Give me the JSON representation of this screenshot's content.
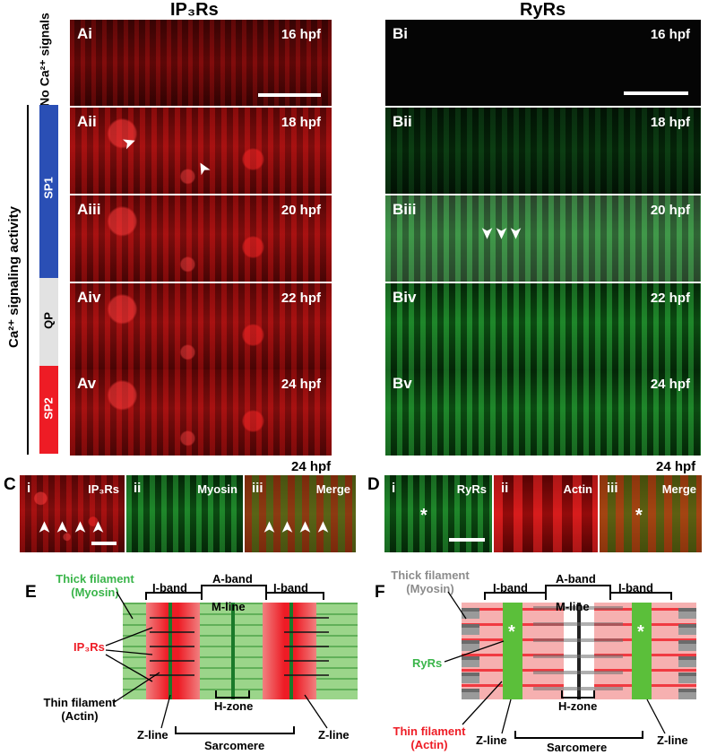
{
  "headers": {
    "ip3rs": "IP₃Rs",
    "ryrs": "RyRs"
  },
  "side": {
    "no_signals": "No Ca²⁺ signals",
    "activity": "Ca²⁺ signaling activity",
    "sp1": "SP1",
    "qp": "QP",
    "sp2": "SP2",
    "colors": {
      "sp1": "#2a4fb5",
      "qp": "#e2e2e2",
      "sp2": "#ee1c25"
    }
  },
  "panels_a": [
    {
      "label": "Ai",
      "time": "16 hpf"
    },
    {
      "label": "Aii",
      "time": "18 hpf"
    },
    {
      "label": "Aiii",
      "time": "20 hpf"
    },
    {
      "label": "Aiv",
      "time": "22 hpf"
    },
    {
      "label": "Av",
      "time": "24 hpf"
    }
  ],
  "panels_b": [
    {
      "label": "Bi",
      "time": "16 hpf"
    },
    {
      "label": "Bii",
      "time": "18 hpf"
    },
    {
      "label": "Biii",
      "time": "20 hpf"
    },
    {
      "label": "Biv",
      "time": "22 hpf"
    },
    {
      "label": "Bv",
      "time": "24 hpf"
    }
  ],
  "panel_c": {
    "letter": "C",
    "time": "24 hpf",
    "i": "i",
    "i_label": "IP₃Rs",
    "ii": "ii",
    "ii_label": "Myosin",
    "iii": "iii",
    "iii_label": "Merge"
  },
  "panel_d": {
    "letter": "D",
    "time": "24 hpf",
    "i": "i",
    "i_label": "RyRs",
    "ii": "ii",
    "ii_label": "Actin",
    "iii": "iii",
    "iii_label": "Merge"
  },
  "diagram_e": {
    "letter": "E",
    "thick": "Thick filament",
    "thick2": "(Myosin)",
    "ip3rs": "IP₃Rs",
    "thin": "Thin filament",
    "thin2": "(Actin)",
    "i_band": "I-band",
    "a_band": "A-band",
    "m_line": "M-line",
    "h_zone": "H-zone",
    "z_line": "Z-line",
    "sarcomere": "Sarcomere"
  },
  "diagram_f": {
    "letter": "F",
    "thick": "Thick filament",
    "thick2": "(Myosin)",
    "ryrs": "RyRs",
    "thin": "Thin filament",
    "thin2": "(Actin)",
    "i_band": "I-band",
    "a_band": "A-band",
    "m_line": "M-line",
    "h_zone": "H-zone",
    "z_line": "Z-line",
    "sarcomere": "Sarcomere"
  },
  "colors": {
    "ip3": "#ee1c25",
    "ryr": "#3ab54a",
    "myosin_gray": "#8c8c8c"
  }
}
